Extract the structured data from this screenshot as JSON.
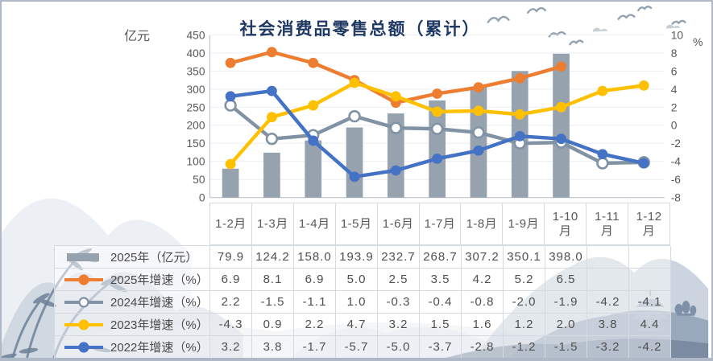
{
  "title": {
    "text": "社会消费品零售总额（累计）",
    "color": "#1F3864"
  },
  "axis_units": {
    "left": "亿元",
    "right": "%"
  },
  "chart_data": {
    "type": "combo-bar-line",
    "title": "社会消费品零售总额（累计）",
    "categories": [
      "1-2月",
      "1-3月",
      "1-4月",
      "1-5月",
      "1-6月",
      "1-7月",
      "1-8月",
      "1-9月",
      "1-10月",
      "1-11月",
      "1-12月"
    ],
    "left_axis": {
      "label": "亿元",
      "range": [
        0,
        450
      ],
      "ticks": [
        0,
        50,
        100,
        150,
        200,
        250,
        300,
        350,
        400,
        450
      ]
    },
    "right_axis": {
      "label": "%",
      "range": [
        -8,
        10
      ],
      "ticks": [
        -8,
        -6,
        -4,
        -2,
        0,
        2,
        4,
        6,
        8,
        10
      ]
    },
    "grid": true,
    "legend_position": "table-left",
    "bar_series": {
      "name": "2025年（亿元）",
      "axis": "left",
      "color": "#97A2AF",
      "values": [
        79.9,
        124.2,
        158.0,
        193.9,
        232.7,
        268.7,
        307.2,
        350.1,
        398.0,
        null,
        null
      ]
    },
    "line_series": [
      {
        "name": "2025年增速（%）",
        "axis": "right",
        "color": "#ED7D31",
        "marker": "filled",
        "values": [
          6.9,
          8.1,
          6.9,
          5.0,
          2.5,
          3.5,
          4.2,
          5.2,
          6.5,
          null,
          null
        ]
      },
      {
        "name": "2024年增速（%）",
        "axis": "right",
        "color": "#8092A4",
        "marker": "open",
        "values": [
          2.2,
          -1.5,
          -1.1,
          1.0,
          -0.3,
          -0.4,
          -0.8,
          -2.0,
          -1.9,
          -4.2,
          -4.1
        ]
      },
      {
        "name": "2023年增速（%）",
        "axis": "right",
        "color": "#FFC000",
        "marker": "filled",
        "values": [
          -4.3,
          0.9,
          2.2,
          4.7,
          3.2,
          1.5,
          1.6,
          1.2,
          2.0,
          3.8,
          4.4
        ]
      },
      {
        "name": "2022年增速（%）",
        "axis": "right",
        "color": "#4472C4",
        "marker": "filled",
        "values": [
          3.2,
          3.8,
          -1.7,
          -5.7,
          -5.0,
          -3.7,
          -2.8,
          -1.2,
          -1.5,
          -3.2,
          -4.2
        ]
      }
    ]
  },
  "table": {
    "rows": [
      {
        "label": "2025年（亿元）",
        "swatch": "bar",
        "color": "#97A2AF",
        "marker": "none",
        "values": [
          "79.9",
          "124.2",
          "158.0",
          "193.9",
          "232.7",
          "268.7",
          "307.2",
          "350.1",
          "398.0",
          "",
          ""
        ]
      },
      {
        "label": "2025年增速（%）",
        "swatch": "line",
        "color": "#ED7D31",
        "marker": "filled",
        "values": [
          "6.9",
          "8.1",
          "6.9",
          "5.0",
          "2.5",
          "3.5",
          "4.2",
          "5.2",
          "6.5",
          "",
          ""
        ]
      },
      {
        "label": "2024年增速（%）",
        "swatch": "line",
        "color": "#8092A4",
        "marker": "open",
        "values": [
          "2.2",
          "-1.5",
          "-1.1",
          "1.0",
          "-0.3",
          "-0.4",
          "-0.8",
          "-2.0",
          "-1.9",
          "-4.2",
          "-4.1"
        ]
      },
      {
        "label": "2023年增速（%）",
        "swatch": "line",
        "color": "#FFC000",
        "marker": "filled",
        "values": [
          "-4.3",
          "0.9",
          "2.2",
          "4.7",
          "3.2",
          "1.5",
          "1.6",
          "1.2",
          "2.0",
          "3.8",
          "4.4"
        ]
      },
      {
        "label": "2022年增速（%）",
        "swatch": "line",
        "color": "#4472C4",
        "marker": "filled",
        "values": [
          "3.2",
          "3.8",
          "-1.7",
          "-5.7",
          "-5.0",
          "-3.7",
          "-2.8",
          "-1.2",
          "-1.5",
          "-3.2",
          "-4.2"
        ]
      }
    ]
  },
  "decor": {
    "style": "chinese-ink-painting",
    "elements": [
      "mountains",
      "bamboo",
      "pagoda",
      "trees",
      "birds",
      "clouds"
    ],
    "tint": "#8FA0B5"
  }
}
